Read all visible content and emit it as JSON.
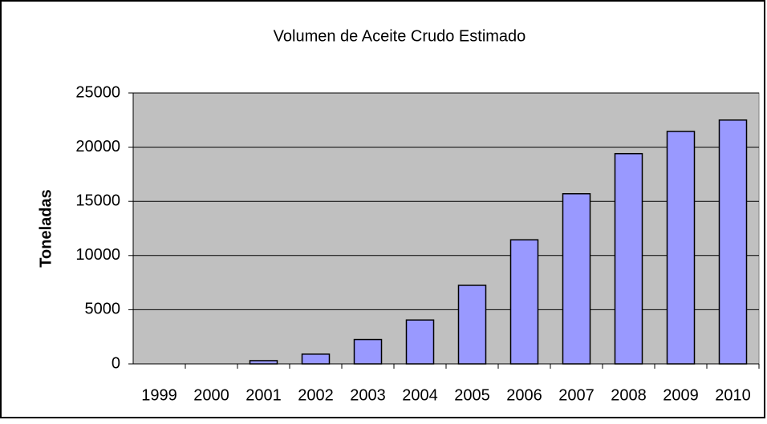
{
  "chart_data": {
    "type": "bar",
    "title": "Volumen de Aceite Crudo Estimado",
    "y_label": "Toneladas",
    "categories": [
      "1999",
      "2000",
      "2001",
      "2002",
      "2003",
      "2004",
      "2005",
      "2006",
      "2007",
      "2008",
      "2009",
      "2010"
    ],
    "values": [
      0,
      0,
      300,
      900,
      2250,
      4050,
      7250,
      11450,
      15700,
      19400,
      21450,
      22500
    ],
    "color": "#9999ff",
    "ylim": [
      0,
      25000
    ],
    "yticks": [
      0,
      5000,
      10000,
      15000,
      20000,
      25000
    ],
    "grid": true
  }
}
